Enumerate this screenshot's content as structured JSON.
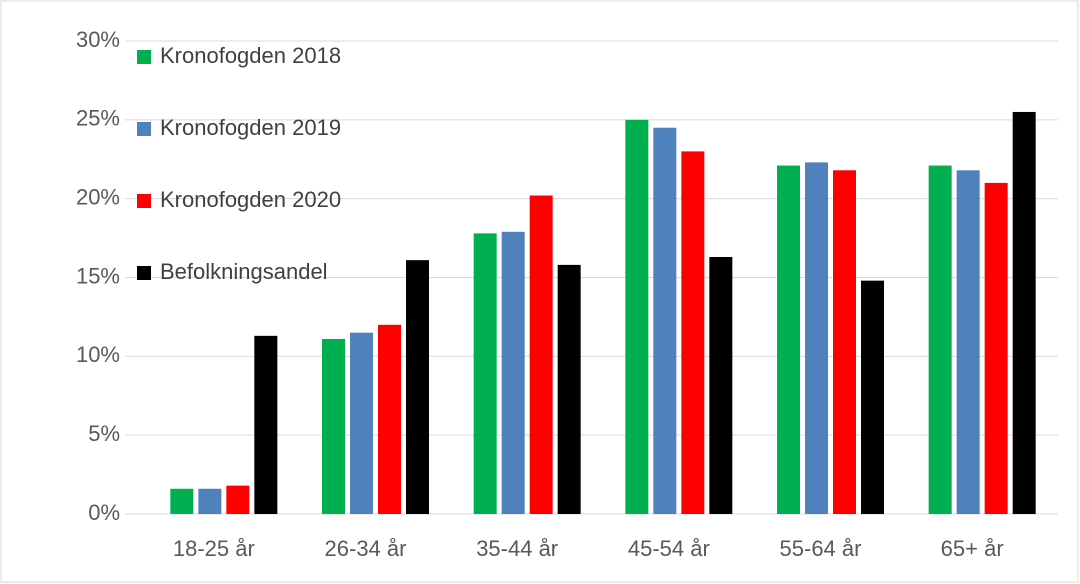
{
  "chart_data": {
    "type": "bar",
    "categories": [
      "18-25 år",
      "26-34 år",
      "35-44 år",
      "45-54 år",
      "55-64 år",
      "65+ år"
    ],
    "series": [
      {
        "name": "Kronofogden 2018",
        "color": "#00b050",
        "values": [
          1.6,
          11.1,
          17.8,
          25.0,
          22.1,
          22.1
        ]
      },
      {
        "name": "Kronofogden 2019",
        "color": "#4f81bd",
        "values": [
          1.6,
          11.5,
          17.9,
          24.5,
          22.3,
          21.8
        ]
      },
      {
        "name": "Kronofogden 2020",
        "color": "#ff0000",
        "values": [
          1.8,
          12.0,
          20.2,
          23.0,
          21.8,
          21.0
        ]
      },
      {
        "name": "Befolkningsandel",
        "color": "#000000",
        "values": [
          11.3,
          16.1,
          15.8,
          16.3,
          14.8,
          25.5
        ]
      }
    ],
    "ylim": [
      0,
      30
    ],
    "yticks": [
      {
        "value": 0,
        "label": "0%"
      },
      {
        "value": 5,
        "label": "5%"
      },
      {
        "value": 10,
        "label": "10%"
      },
      {
        "value": 15,
        "label": "15%"
      },
      {
        "value": 20,
        "label": "20%"
      },
      {
        "value": 25,
        "label": "25%"
      },
      {
        "value": 30,
        "label": "30%"
      }
    ],
    "grid": true,
    "legend": "top-left"
  }
}
